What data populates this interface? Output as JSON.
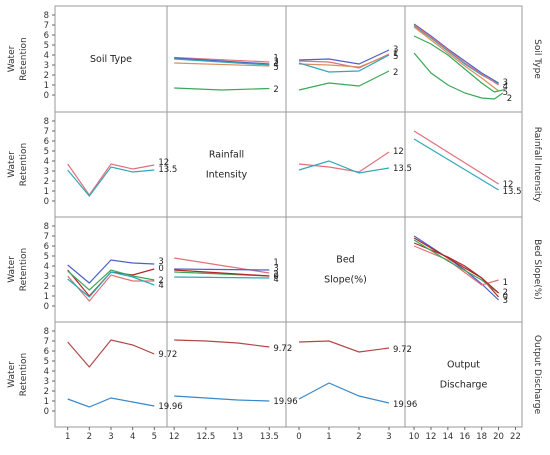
{
  "chart_data": {
    "type": "line",
    "kind": "interaction-plot-matrix",
    "ylabel": "Water Retention",
    "ylim": [
      -1,
      8
    ],
    "yticks": [
      0,
      1,
      2,
      3,
      4,
      5,
      6,
      7,
      8
    ],
    "grid": false,
    "factors": [
      {
        "name": "Soil Type",
        "diag_label": [
          "Soil Type"
        ],
        "xticks": [
          "1",
          "2",
          "3",
          "4",
          "5"
        ],
        "xlim": [
          0.6,
          5.4
        ],
        "xtick_values": [
          1,
          2,
          3,
          4,
          5
        ]
      },
      {
        "name": "Rainfall Intensity",
        "diag_label": [
          "Rainfall",
          "Intensity"
        ],
        "xticks": [
          "12",
          "12.5",
          "13",
          "13.5"
        ],
        "xlim": [
          11.95,
          13.7
        ],
        "xtick_values": [
          12,
          12.5,
          13,
          13.5
        ]
      },
      {
        "name": "Bed Slope(%)",
        "diag_label": [
          "Bed",
          "Slope(%)"
        ],
        "xticks": [
          "0",
          "1",
          "2",
          "3"
        ],
        "xlim": [
          -0.3,
          3.4
        ],
        "xtick_values": [
          0,
          1,
          2,
          3
        ]
      },
      {
        "name": "Output Discharge",
        "diag_label": [
          "Output",
          "Discharge"
        ],
        "xticks": [
          "10",
          "12",
          "14",
          "16",
          "18",
          "20",
          "22"
        ],
        "xlim": [
          9.4,
          22.3
        ],
        "xtick_values": [
          10,
          12,
          14,
          16,
          18,
          20,
          22
        ]
      }
    ],
    "colors": {
      "1": "#e0707a",
      "2": "#3aa858",
      "3": "#4a62c8",
      "4": "#30a8b8",
      "5": "#d89060",
      "12": "#e0707a",
      "13.5": "#30a8b8",
      "0": "#b02828",
      "9.72": "#b04848",
      "19.96": "#3a88c8"
    },
    "cells": [
      {
        "row": 0,
        "col": 1,
        "series": [
          {
            "name": "1",
            "x": [
              12,
              13.5
            ],
            "y": [
              3.75,
              3.3
            ],
            "label_y": 3.75
          },
          {
            "name": "3",
            "x": [
              12,
              13.5
            ],
            "y": [
              3.7,
              3.1
            ],
            "label_y": 3.4
          },
          {
            "name": "4",
            "x": [
              12,
              13.5
            ],
            "y": [
              3.6,
              3.0
            ],
            "label_y": 3.1
          },
          {
            "name": "5",
            "x": [
              12,
              13.5
            ],
            "y": [
              3.2,
              2.9
            ],
            "label_y": 2.8
          },
          {
            "name": "2",
            "x": [
              12,
              12.75,
              13.5
            ],
            "y": [
              0.7,
              0.5,
              0.65
            ],
            "label_y": 0.6
          }
        ]
      },
      {
        "row": 0,
        "col": 2,
        "series": [
          {
            "name": "3",
            "x": [
              0,
              1,
              2,
              3
            ],
            "y": [
              3.5,
              3.6,
              3.1,
              4.5
            ],
            "label_y": 4.6
          },
          {
            "name": "1",
            "x": [
              0,
              1,
              2,
              3
            ],
            "y": [
              3.4,
              3.3,
              2.7,
              4.1
            ],
            "label_y": 4.2
          },
          {
            "name": "5",
            "x": [
              0,
              1,
              2,
              3
            ],
            "y": [
              3.1,
              3.0,
              2.8,
              4.0
            ],
            "label_y": 3.9
          },
          {
            "name": "4",
            "x": [
              0,
              1,
              2,
              3
            ],
            "y": [
              3.2,
              2.3,
              2.4,
              4.0
            ]
          },
          {
            "name": "2",
            "x": [
              0,
              1,
              2,
              3
            ],
            "y": [
              0.5,
              1.2,
              0.9,
              2.4
            ],
            "label_y": 2.3
          }
        ]
      },
      {
        "row": 0,
        "col": 3,
        "series": [
          {
            "name": "3",
            "x": [
              10,
              12,
              14,
              16,
              18,
              20
            ],
            "y": [
              7.1,
              5.9,
              4.6,
              3.4,
              2.2,
              1.2
            ],
            "label_y": 1.3
          },
          {
            "name": "4",
            "x": [
              10,
              12,
              14,
              16,
              18,
              20
            ],
            "y": [
              6.9,
              5.7,
              4.4,
              3.1,
              2.0,
              1.1
            ],
            "label_y": 0.9
          },
          {
            "name": "1",
            "x": [
              10,
              12,
              14,
              16,
              18,
              20
            ],
            "y": [
              7.0,
              5.8,
              4.5,
              3.2,
              2.1,
              1.0
            ]
          },
          {
            "name": "5",
            "x": [
              10,
              12,
              14,
              16,
              18,
              20
            ],
            "y": [
              6.8,
              5.5,
              4.2,
              2.9,
              1.7,
              0.4
            ],
            "label_y": 0.3
          },
          {
            "name": "2",
            "x": [
              10,
              12,
              14,
              16,
              18,
              19.5,
              20.5
            ],
            "y": [
              5.9,
              5.1,
              4.0,
              2.6,
              1.2,
              0.3,
              0.5
            ]
          },
          {
            "name": "2",
            "x": [
              10,
              12,
              14,
              16,
              18,
              19.5,
              20.5
            ],
            "y": [
              4.2,
              2.2,
              1.0,
              0.2,
              -0.3,
              -0.4,
              0.2
            ],
            "label_y": -0.3
          }
        ]
      },
      {
        "row": 1,
        "col": 0,
        "series": [
          {
            "name": "12",
            "x": [
              1,
              2,
              3,
              4,
              5
            ],
            "y": [
              3.7,
              0.6,
              3.7,
              3.2,
              3.6
            ],
            "label_y": 3.9
          },
          {
            "name": "13.5",
            "x": [
              1,
              2,
              3,
              4,
              5
            ],
            "y": [
              3.1,
              0.5,
              3.4,
              2.9,
              3.1
            ],
            "label_y": 3.2
          }
        ]
      },
      {
        "row": 1,
        "col": 2,
        "series": [
          {
            "name": "12",
            "x": [
              0,
              1,
              2,
              3
            ],
            "y": [
              3.7,
              3.4,
              2.9,
              4.9
            ],
            "label_y": 5.0
          },
          {
            "name": "13.5",
            "x": [
              0,
              1,
              2,
              3
            ],
            "y": [
              3.1,
              4.0,
              2.8,
              3.3
            ],
            "label_y": 3.3
          }
        ]
      },
      {
        "row": 1,
        "col": 3,
        "series": [
          {
            "name": "12",
            "x": [
              10,
              20
            ],
            "y": [
              7.0,
              1.7
            ],
            "label_y": 1.7
          },
          {
            "name": "13.5",
            "x": [
              10,
              20
            ],
            "y": [
              6.2,
              1.1
            ],
            "label_y": 1.0
          }
        ]
      },
      {
        "row": 2,
        "col": 0,
        "series": [
          {
            "name": "3",
            "x": [
              1,
              2,
              3,
              4,
              5
            ],
            "y": [
              4.1,
              2.3,
              4.6,
              4.3,
              4.2
            ],
            "label_y": 4.5
          },
          {
            "name": "0",
            "x": [
              1,
              2,
              3,
              4,
              5
            ],
            "y": [
              3.6,
              1.0,
              3.4,
              3.1,
              3.7
            ],
            "label_y": 3.8
          },
          {
            "name": "1",
            "x": [
              1,
              2,
              3,
              4,
              5
            ],
            "y": [
              3.0,
              0.5,
              3.1,
              2.5,
              2.5
            ]
          },
          {
            "name": "2",
            "x": [
              1,
              2,
              3,
              4,
              5
            ],
            "y": [
              3.5,
              1.6,
              3.6,
              3.0,
              2.6
            ],
            "label_y": 2.6
          },
          {
            "name": "4",
            "x": [
              1,
              2,
              3,
              4,
              5
            ],
            "y": [
              2.7,
              0.9,
              3.4,
              2.9,
              2.1
            ],
            "label_y": 2.1
          }
        ]
      },
      {
        "row": 2,
        "col": 1,
        "series": [
          {
            "name": "1",
            "x": [
              12,
              13.5
            ],
            "y": [
              4.8,
              3.3
            ],
            "label_y": 4.4
          },
          {
            "name": "3",
            "x": [
              12,
              13.5
            ],
            "y": [
              3.7,
              3.6
            ],
            "label_y": 3.8
          },
          {
            "name": "2",
            "x": [
              12,
              13.5
            ],
            "y": [
              3.4,
              3.0
            ],
            "label_y": 3.2
          },
          {
            "name": "0",
            "x": [
              12,
              13.5
            ],
            "y": [
              3.6,
              3.0
            ],
            "label_y": 3.0
          },
          {
            "name": "4",
            "x": [
              12,
              13.5
            ],
            "y": [
              2.9,
              2.8
            ],
            "label_y": 2.7
          }
        ]
      },
      {
        "row": 2,
        "col": 3,
        "series": [
          {
            "name": "3",
            "x": [
              10,
              14,
              16,
              18,
              20
            ],
            "y": [
              7.0,
              4.8,
              3.6,
              2.2,
              0.6
            ],
            "label_y": 0.6
          },
          {
            "name": "0",
            "x": [
              10,
              12,
              14,
              16,
              18,
              20
            ],
            "y": [
              6.3,
              5.6,
              4.9,
              4.0,
              2.8,
              0.9
            ]
          },
          {
            "name": "1",
            "x": [
              10,
              14,
              18,
              20
            ],
            "y": [
              6.0,
              4.6,
              2.1,
              2.6
            ],
            "label_y": 2.4
          },
          {
            "name": "2",
            "x": [
              10,
              14,
              18,
              20
            ],
            "y": [
              6.6,
              4.5,
              2.6,
              1.3
            ],
            "label_y": 1.4
          },
          {
            "name": "0",
            "x": [
              10,
              14,
              18,
              20
            ],
            "y": [
              6.8,
              4.8,
              2.8,
              1.3
            ],
            "label_y": 1.0
          }
        ]
      },
      {
        "row": 3,
        "col": 0,
        "series": [
          {
            "name": "9.72",
            "x": [
              1,
              2,
              3,
              4,
              5
            ],
            "y": [
              6.9,
              4.4,
              7.1,
              6.6,
              5.7
            ],
            "label_y": 5.7
          },
          {
            "name": "19.96",
            "x": [
              1,
              2,
              3,
              4,
              5
            ],
            "y": [
              1.2,
              0.4,
              1.3,
              0.9,
              0.5
            ],
            "label_y": 0.5
          }
        ]
      },
      {
        "row": 3,
        "col": 1,
        "series": [
          {
            "name": "9.72",
            "x": [
              12,
              12.5,
              13,
              13.5
            ],
            "y": [
              7.1,
              7.0,
              6.8,
              6.4
            ],
            "label_y": 6.3
          },
          {
            "name": "19.96",
            "x": [
              12,
              12.5,
              13,
              13.5
            ],
            "y": [
              1.5,
              1.3,
              1.1,
              1.0
            ],
            "label_y": 1.0
          }
        ]
      },
      {
        "row": 3,
        "col": 2,
        "series": [
          {
            "name": "9.72",
            "x": [
              0,
              1,
              2,
              3
            ],
            "y": [
              6.9,
              7.0,
              5.9,
              6.3
            ],
            "label_y": 6.2
          },
          {
            "name": "19.96",
            "x": [
              0,
              1,
              2,
              3
            ],
            "y": [
              1.2,
              2.8,
              1.5,
              0.8
            ],
            "label_y": 0.7
          }
        ]
      }
    ]
  }
}
